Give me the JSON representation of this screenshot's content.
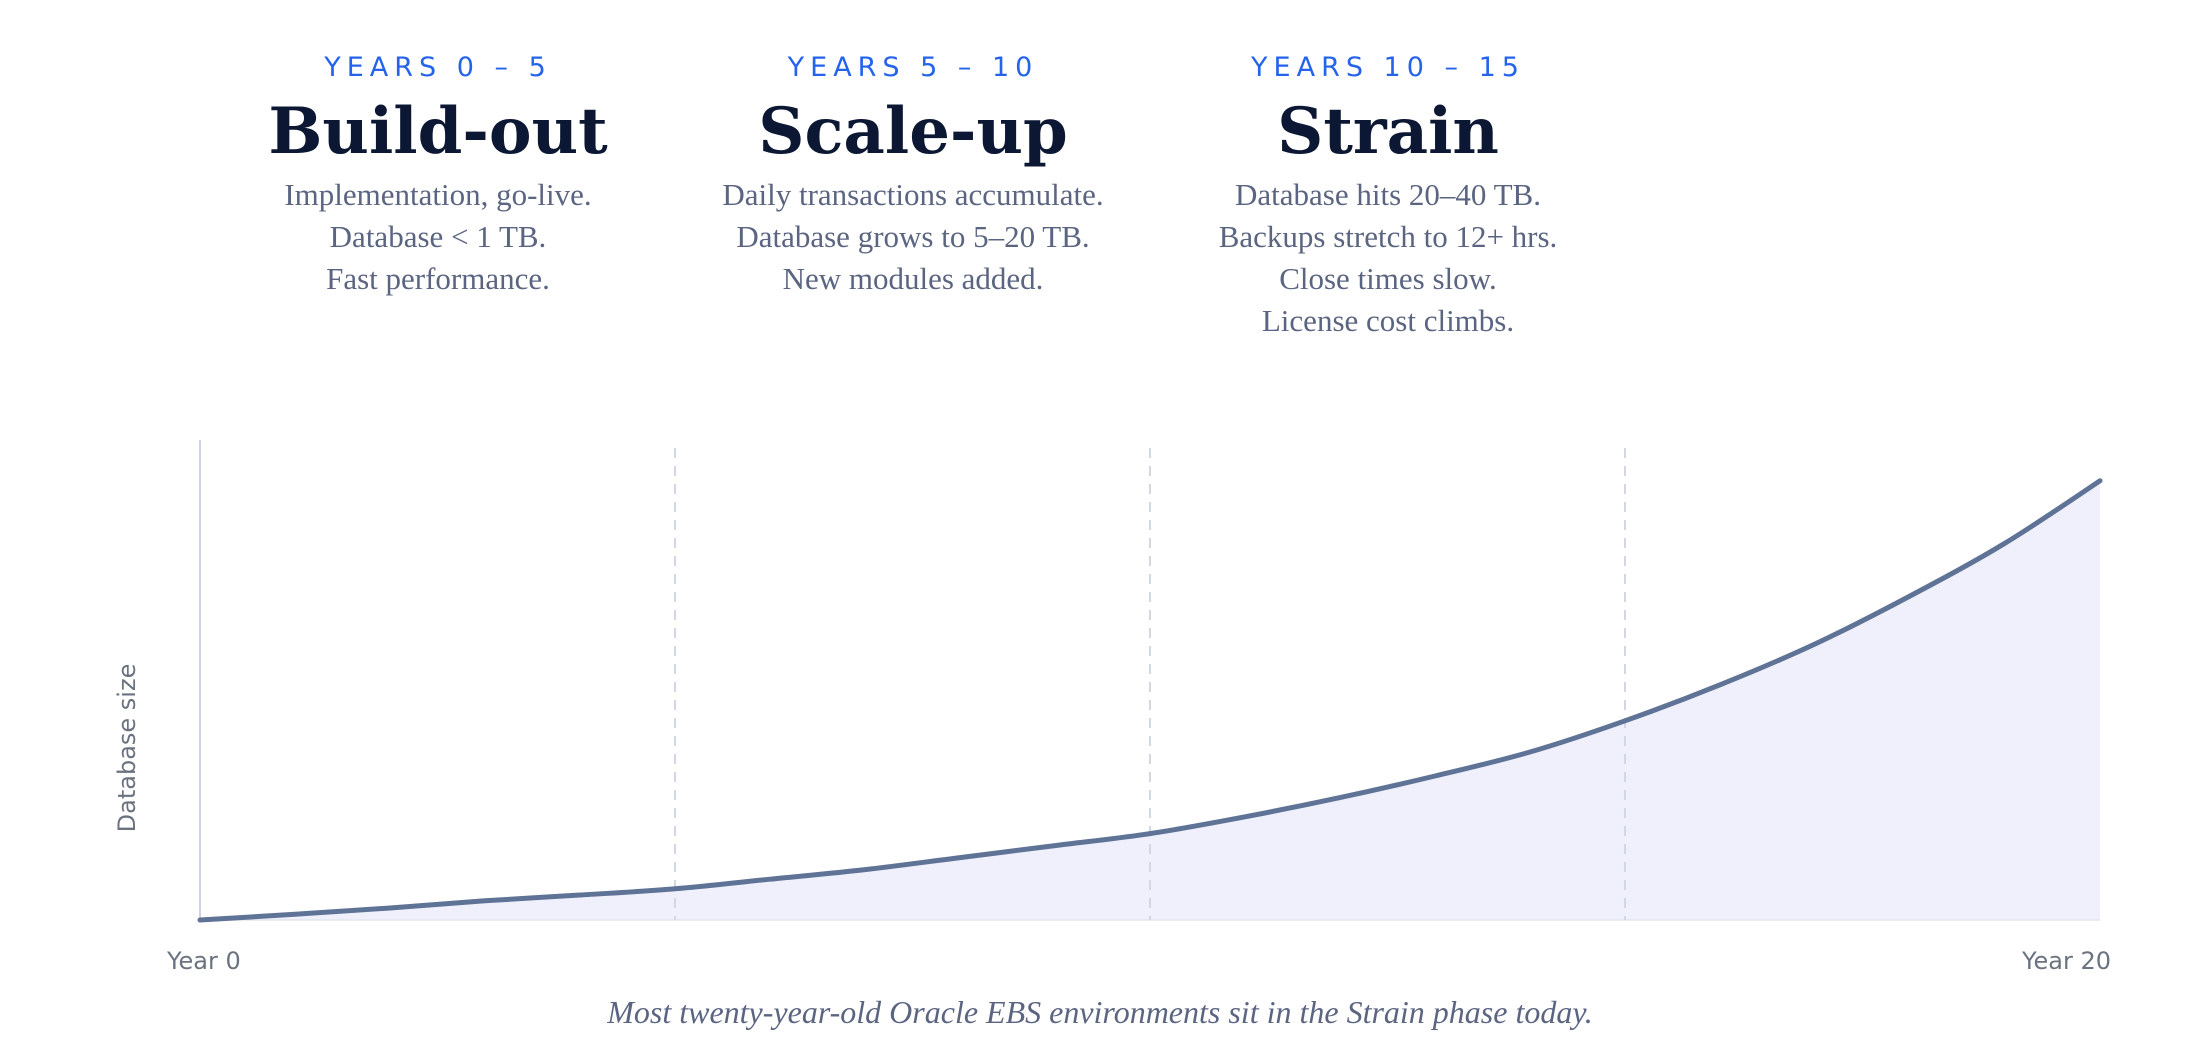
{
  "phases": [
    {
      "years": "YEARS 0 – 5",
      "title": "Build-out",
      "lines": [
        "Implementation, go-live.",
        "Database < 1 TB.",
        "Fast performance."
      ]
    },
    {
      "years": "YEARS 5 – 10",
      "title": "Scale-up",
      "lines": [
        "Daily transactions accumulate.",
        "Database grows to 5–20 TB.",
        "New modules added."
      ]
    },
    {
      "years": "YEARS 10 – 15",
      "title": "Strain",
      "lines": [
        "Database hits 20–40 TB.",
        "Backups stretch to 12+ hrs.",
        "Close times slow.",
        "License cost climbs."
      ]
    }
  ],
  "caption": "Most twenty-year-old Oracle EBS environments sit in the Strain phase today.",
  "colors": {
    "accent": "#2563eb",
    "title": "#0b1733",
    "line": "#5f7396",
    "area": "#eff0fb"
  },
  "chart_data": {
    "type": "area",
    "title": "",
    "xlabel": "",
    "ylabel": "Database size",
    "x_tick_labels": [
      "Year 0",
      "Year 20"
    ],
    "xlim": [
      0,
      20
    ],
    "ylim": [
      0,
      1
    ],
    "phase_dividers": [
      5,
      10,
      15
    ],
    "grid": false,
    "legend": "none",
    "series": [
      {
        "x": [
          0,
          1,
          2,
          3,
          4,
          5,
          6,
          7,
          8,
          9,
          10,
          11,
          12,
          13,
          14,
          15,
          16,
          17,
          18,
          19,
          20
        ],
        "values": [
          0.0,
          0.012,
          0.025,
          0.04,
          0.052,
          0.065,
          0.085,
          0.105,
          0.13,
          0.155,
          0.18,
          0.215,
          0.255,
          0.3,
          0.35,
          0.415,
          0.49,
          0.575,
          0.675,
          0.785,
          0.915
        ]
      }
    ]
  }
}
